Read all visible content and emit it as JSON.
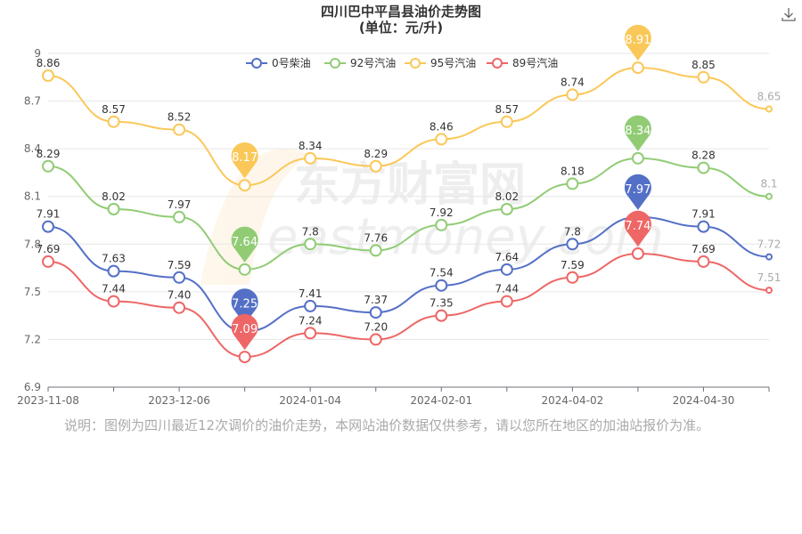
{
  "chart_data": {
    "type": "line",
    "title": "四川巴中平昌县油价走势图",
    "subtitle": "(单位：元/升)",
    "note": "说明：图例为四川最近12次调价的油价走势，本网站油价数据仅供参考，请以您所在地区的加油站报价为准。",
    "watermark": "东方财富网 eastmoney.com",
    "x_tick_labels": [
      "2023-11-08",
      "2023-12-06",
      "2024-01-04",
      "2024-02-01",
      "2024-04-02",
      "2024-04-30"
    ],
    "y_ticks": [
      6.9,
      7.2,
      7.5,
      7.8,
      8.1,
      8.4,
      8.7,
      9
    ],
    "ylim": [
      6.9,
      9
    ],
    "grid": true,
    "legend_position": "top",
    "series": [
      {
        "name": "0号柴油",
        "color": "#5470c6",
        "values": [
          7.91,
          7.63,
          7.59,
          7.25,
          7.41,
          7.37,
          7.54,
          7.64,
          7.8,
          7.97,
          7.91,
          7.72
        ],
        "max_label": "7.97",
        "min_label": "7.25"
      },
      {
        "name": "92号汽油",
        "color": "#91cc75",
        "values": [
          8.29,
          8.02,
          7.97,
          7.64,
          7.8,
          7.76,
          7.92,
          8.02,
          8.18,
          8.34,
          8.28,
          8.1
        ],
        "max_label": "8.34",
        "min_label": "7.64"
      },
      {
        "name": "95号汽油",
        "color": "#fac858",
        "values": [
          8.86,
          8.57,
          8.52,
          8.17,
          8.34,
          8.29,
          8.46,
          8.57,
          8.74,
          8.91,
          8.85,
          8.65
        ],
        "max_label": "8.91",
        "min_label": "8.17"
      },
      {
        "name": "89号汽油",
        "color": "#ee6666",
        "values": [
          7.69,
          7.44,
          7.4,
          7.09,
          7.24,
          7.2,
          7.35,
          7.44,
          7.59,
          7.74,
          7.69,
          7.51
        ],
        "max_label": "7.74",
        "min_label": "7.09"
      }
    ]
  },
  "toolbar": {
    "download_icon": "download-icon"
  }
}
